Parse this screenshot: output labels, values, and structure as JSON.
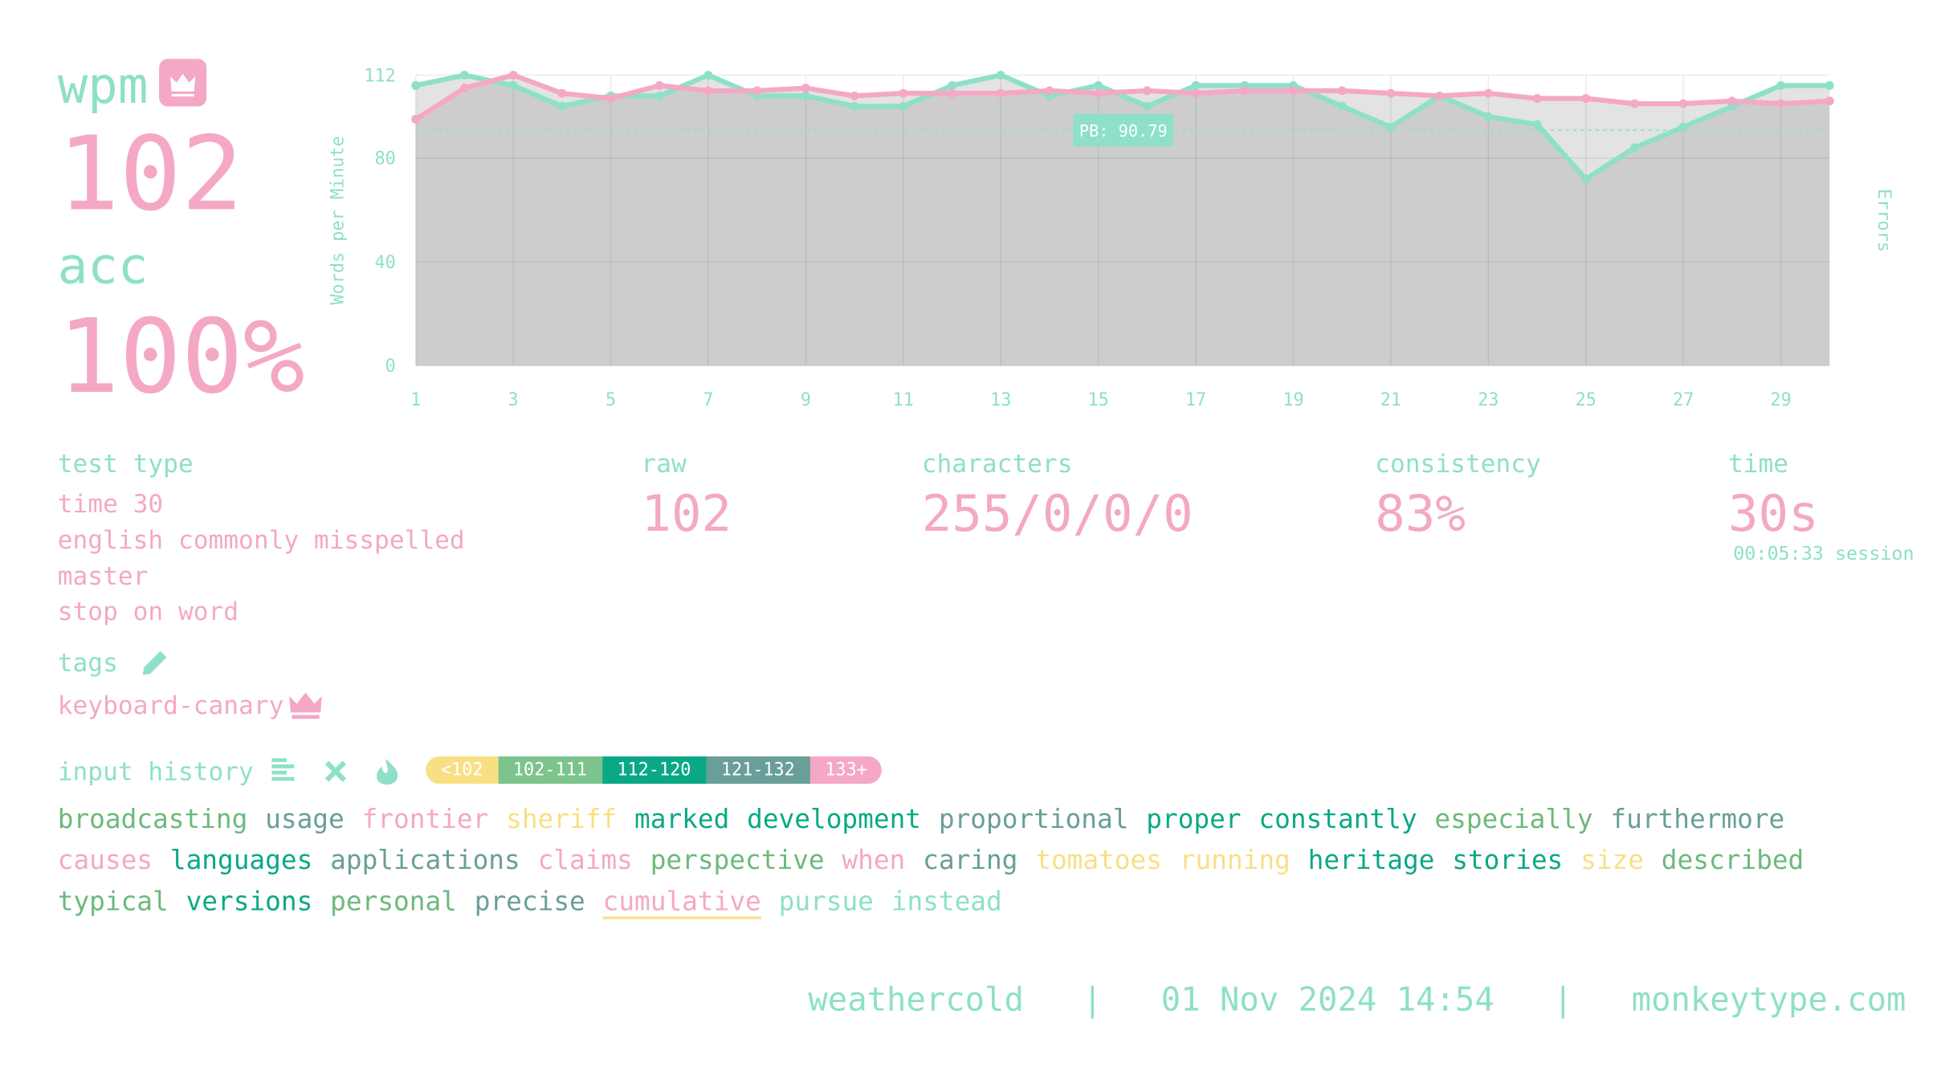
{
  "stats": {
    "wpm_label": "wpm",
    "wpm": "102",
    "acc_label": "acc",
    "acc": "100%",
    "test_type_label": "test type",
    "test_type": [
      "time 30",
      "english commonly misspelled",
      "master",
      "stop on word"
    ],
    "tags_label": "tags",
    "tag": "keyboard-canary",
    "raw_label": "raw",
    "raw": "102",
    "characters_label": "characters",
    "characters": "255/0/0/0",
    "consistency_label": "consistency",
    "consistency": "83%",
    "time_label": "time",
    "time": "30s",
    "session": "00:05:33 session"
  },
  "chart_data": {
    "type": "line",
    "y_label": "Words per Minute",
    "y2_label": "Errors",
    "categories": [
      1,
      2,
      3,
      4,
      5,
      6,
      7,
      8,
      9,
      10,
      11,
      12,
      13,
      14,
      15,
      16,
      17,
      18,
      19,
      20,
      21,
      22,
      23,
      24,
      25,
      26,
      27,
      28,
      29,
      30
    ],
    "xlim": [
      1,
      30
    ],
    "xticks": [
      1,
      3,
      5,
      7,
      9,
      11,
      13,
      15,
      17,
      19,
      21,
      23,
      25,
      27,
      29
    ],
    "ylim": [
      0,
      112
    ],
    "yticks": [
      0,
      40,
      80,
      112
    ],
    "grid": true,
    "series": [
      {
        "color": "#8ee0c8",
        "values": [
          108,
          112,
          108,
          100,
          104,
          104,
          112,
          104,
          104,
          100,
          100,
          108,
          112,
          104,
          108,
          100,
          108,
          108,
          108,
          100,
          92,
          104,
          96,
          93,
          72,
          84,
          92,
          100,
          108,
          108
        ]
      },
      {
        "color": "#f4a8c6",
        "values": [
          95,
          107,
          112,
          105,
          103,
          108,
          106,
          106,
          107,
          104,
          105,
          105,
          105,
          106,
          105,
          106,
          105,
          106,
          106,
          106,
          105,
          104,
          105,
          103,
          103,
          101,
          101,
          102,
          101,
          102
        ]
      }
    ],
    "pb": {
      "value": 90.79,
      "label": "PB: 90.79"
    }
  },
  "input_history": {
    "label": "input history",
    "legend": [
      {
        "label": "<102",
        "color": "#f9df84"
      },
      {
        "label": "102-111",
        "color": "#7cc48c"
      },
      {
        "label": "112-120",
        "color": "#0ba886"
      },
      {
        "label": "121-132",
        "color": "#6a9e98"
      },
      {
        "label": "133+",
        "color": "#f4a8c6"
      }
    ],
    "words": [
      {
        "text": "broadcasting",
        "color": "#6cb97c"
      },
      {
        "text": "usage",
        "color": "#6a9e98"
      },
      {
        "text": "frontier",
        "color": "#f4a8c6"
      },
      {
        "text": "sheriff",
        "color": "#f9df84"
      },
      {
        "text": "marked",
        "color": "#0ba886"
      },
      {
        "text": "development",
        "color": "#0ba886"
      },
      {
        "text": "proportional",
        "color": "#6a9e98"
      },
      {
        "text": "proper",
        "color": "#0ba886"
      },
      {
        "text": "constantly",
        "color": "#0ba886"
      },
      {
        "text": "especially",
        "color": "#6cb97c"
      },
      {
        "text": "furthermore",
        "color": "#6a9e98"
      },
      {
        "text": "causes",
        "color": "#f4a8c6"
      },
      {
        "text": "languages",
        "color": "#0ba886"
      },
      {
        "text": "applications",
        "color": "#6a9e98"
      },
      {
        "text": "claims",
        "color": "#f4a8c6"
      },
      {
        "text": "perspective",
        "color": "#6cb97c"
      },
      {
        "text": "when",
        "color": "#f4a8c6"
      },
      {
        "text": "caring",
        "color": "#6a9e98"
      },
      {
        "text": "tomatoes",
        "color": "#f9df84"
      },
      {
        "text": "running",
        "color": "#f9df84"
      },
      {
        "text": "heritage",
        "color": "#0ba886"
      },
      {
        "text": "stories",
        "color": "#0ba886"
      },
      {
        "text": "size",
        "color": "#f9df84"
      },
      {
        "text": "described",
        "color": "#6cb97c"
      },
      {
        "text": "typical",
        "color": "#6cb97c"
      },
      {
        "text": "versions",
        "color": "#0ba886"
      },
      {
        "text": "personal",
        "color": "#6cb97c"
      },
      {
        "text": "precise",
        "color": "#6a9e98"
      },
      {
        "text": "cumulative",
        "color": "#f4a8c6",
        "error": true
      },
      {
        "text": "pursue",
        "color": "#8ee0c8"
      },
      {
        "text": "instead",
        "color": "#8ee0c8"
      }
    ]
  },
  "footer": {
    "user": "weathercold",
    "separator": "|",
    "date": "01 Nov 2024 14:54",
    "site": "monkeytype.com"
  }
}
